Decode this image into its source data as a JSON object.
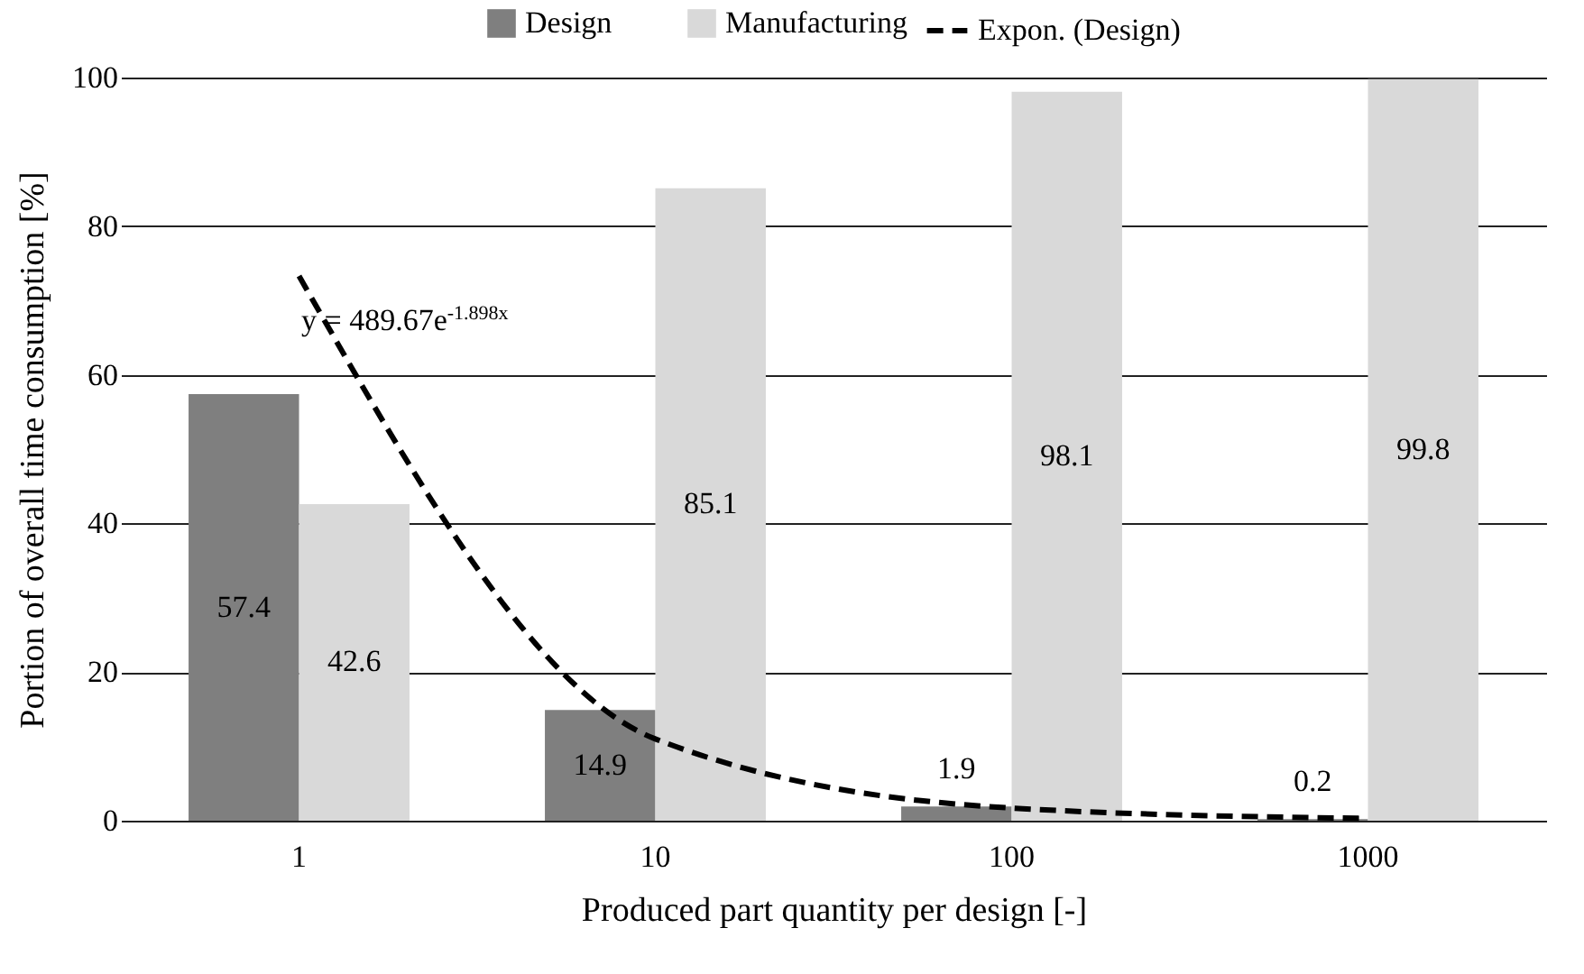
{
  "chart_data": {
    "type": "bar",
    "xlabel": "Produced part quantity per design [-]",
    "ylabel": "Portion of overall time consumption [%]",
    "categories": [
      "1",
      "10",
      "100",
      "1000"
    ],
    "series": [
      {
        "name": "Design",
        "color": "#7f7f7f",
        "values": [
          57.4,
          14.9,
          1.9,
          0.2
        ],
        "value_labels": [
          "57.4",
          "14.9",
          "1.9",
          "0.2"
        ]
      },
      {
        "name": "Manufacturing",
        "color": "#d9d9d9",
        "values": [
          42.6,
          85.1,
          98.1,
          99.8
        ],
        "value_labels": [
          "42.6",
          "85.1",
          "98.1",
          "99.8"
        ]
      },
      {
        "name": "Expon. (Design)",
        "type": "line",
        "color": "#000000",
        "line_style": "dashed",
        "values": [
          73.3,
          11.0,
          1.7,
          0.3
        ]
      }
    ],
    "ylim": [
      0,
      100
    ],
    "yticks": [
      0,
      20,
      40,
      60,
      80,
      100
    ],
    "grid": "y",
    "legend": "top",
    "marker": "none",
    "annotations": [
      "y = 489.67e$^{-1.898x}$"
    ]
  }
}
